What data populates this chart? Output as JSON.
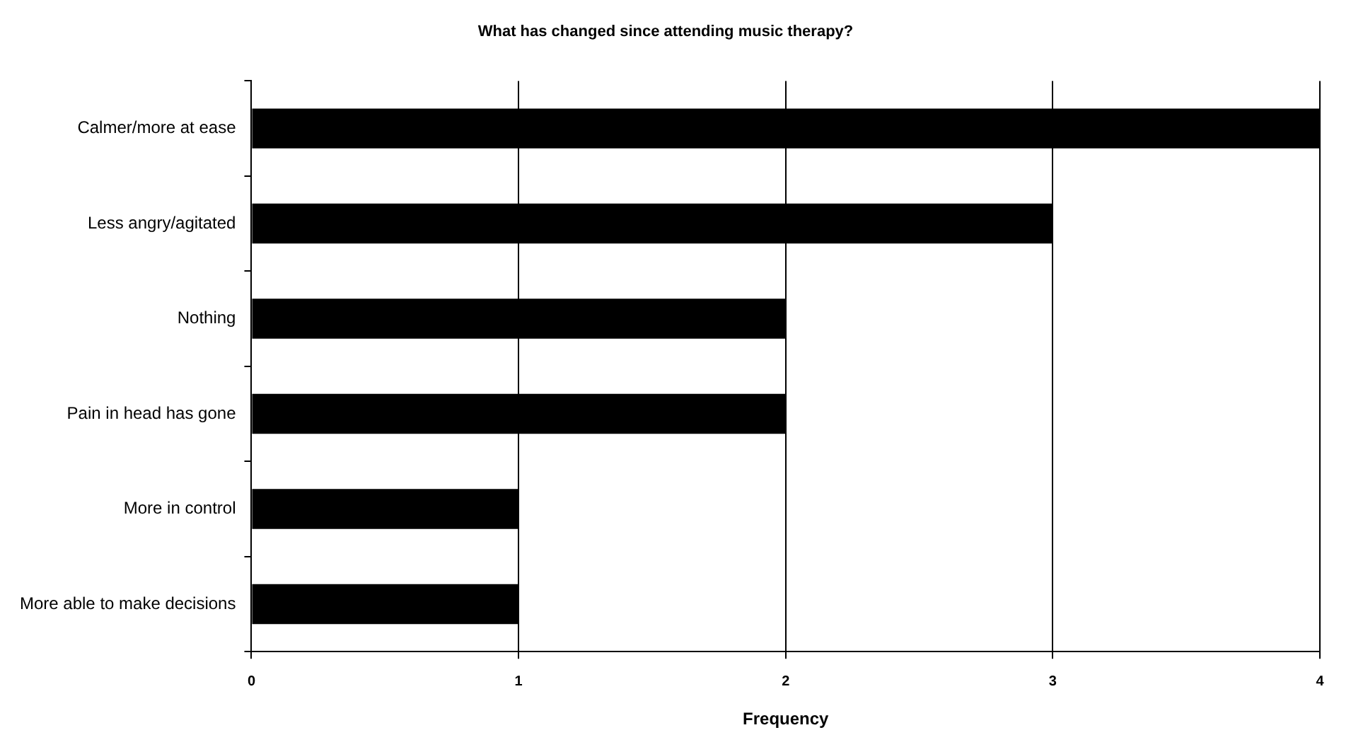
{
  "chart_data": {
    "type": "bar",
    "orientation": "horizontal",
    "title": "What has changed since attending music therapy?",
    "xlabel": "Frequency",
    "categories": [
      "Calmer/more at ease",
      "Less angry/agitated",
      "Nothing",
      "Pain in head has gone",
      "More in control",
      "More able to make decisions"
    ],
    "values": [
      4,
      3,
      2,
      2,
      1,
      1
    ],
    "color": "#000000",
    "xlim": [
      0,
      4
    ],
    "xticks": [
      0,
      1,
      2,
      3,
      4
    ],
    "grid": "x",
    "legend": false
  }
}
